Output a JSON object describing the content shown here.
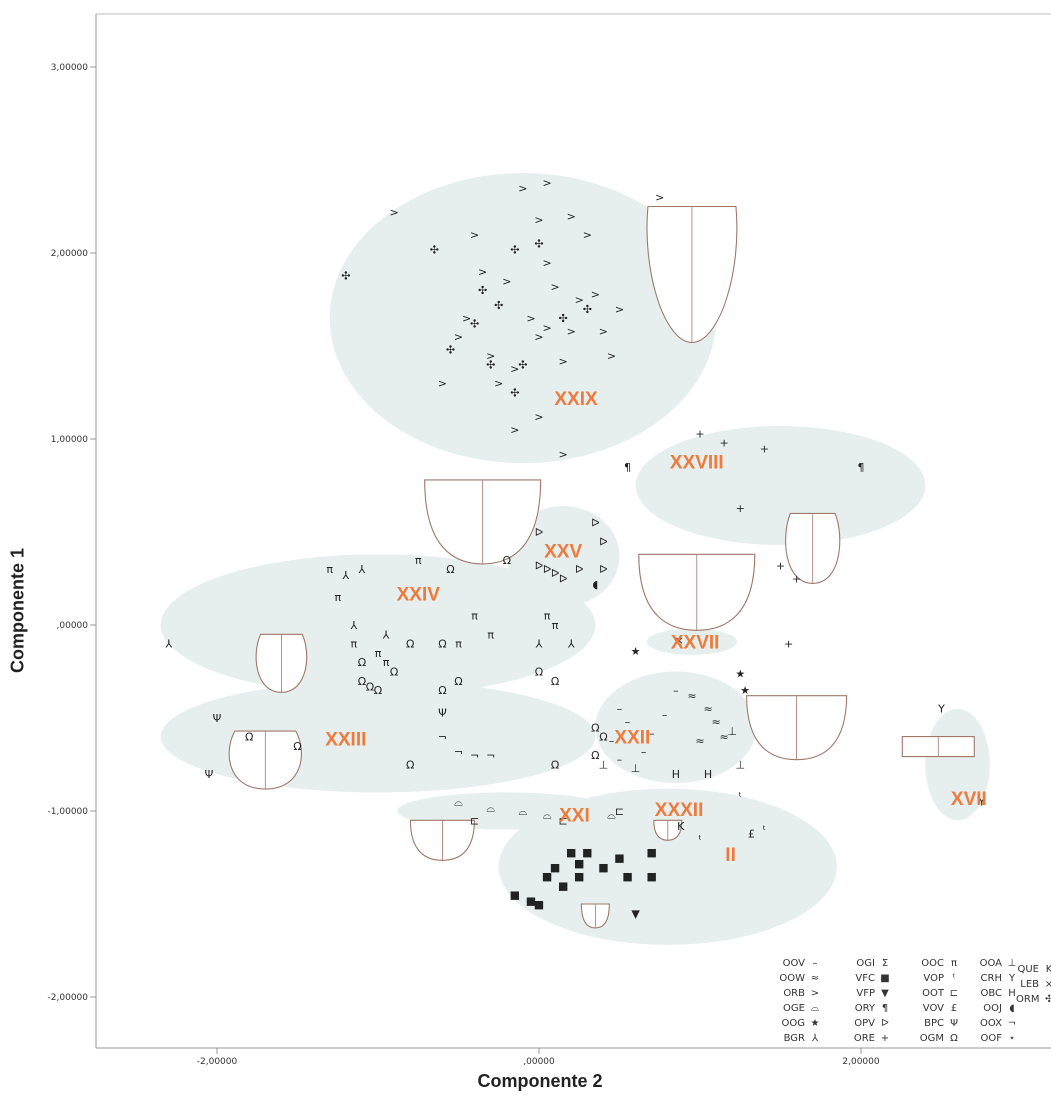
{
  "chart_data": {
    "type": "scatter",
    "xlabel": "Componente 2",
    "ylabel": "Componente 1",
    "xlim": [
      -2.7,
      3.2
    ],
    "ylim": [
      -2.3,
      3.3
    ],
    "x_ticks": [
      {
        "value": -2.0,
        "label": "-2,00000"
      },
      {
        "value": 0.0,
        "label": ",00000"
      },
      {
        "value": 2.0,
        "label": "2,00000"
      }
    ],
    "y_ticks": [
      {
        "value": 3.0,
        "label": "3,00000"
      },
      {
        "value": 2.0,
        "label": "2,00000"
      },
      {
        "value": 1.0,
        "label": "1,00000"
      },
      {
        "value": 0.0,
        "label": ",00000"
      },
      {
        "value": -1.0,
        "label": "-1,00000"
      },
      {
        "value": -2.0,
        "label": "-2,00000"
      }
    ],
    "cluster_color": "#e6efee",
    "label_color": "#ee7a3b",
    "clusters": [
      {
        "label": "XXIX",
        "lx": 0.23,
        "ly": 1.22,
        "cx": -0.1,
        "cy": 1.65,
        "rx": 1.2,
        "ry": 0.78
      },
      {
        "label": "XXVIII",
        "lx": 0.98,
        "ly": 0.88,
        "cx": 1.5,
        "cy": 0.75,
        "rx": 0.9,
        "ry": 0.32
      },
      {
        "label": "XXV",
        "lx": 0.15,
        "ly": 0.4,
        "cx": 0.15,
        "cy": 0.37,
        "rx": 0.35,
        "ry": 0.27
      },
      {
        "label": "XXIV",
        "lx": -0.75,
        "ly": 0.17,
        "cx": -1.0,
        "cy": 0.0,
        "rx": 1.35,
        "ry": 0.38
      },
      {
        "label": "XXVII",
        "lx": 0.97,
        "ly": -0.09,
        "cx": 0.95,
        "cy": -0.09,
        "rx": 0.28,
        "ry": 0.07
      },
      {
        "label": "XXIII",
        "lx": -1.2,
        "ly": -0.61,
        "cx": -1.0,
        "cy": -0.6,
        "rx": 1.35,
        "ry": 0.3
      },
      {
        "label": "XXII",
        "lx": 0.58,
        "ly": -0.6,
        "cx": 0.85,
        "cy": -0.55,
        "rx": 0.5,
        "ry": 0.3
      },
      {
        "label": "XVII",
        "lx": 2.67,
        "ly": -0.93,
        "cx": 2.6,
        "cy": -0.75,
        "rx": 0.2,
        "ry": 0.3
      },
      {
        "label": "XXI",
        "lx": 0.22,
        "ly": -1.02,
        "cx": -0.2,
        "cy": -1.0,
        "rx": 0.68,
        "ry": 0.1
      },
      {
        "label": "XXXII",
        "lx": 0.87,
        "ly": -0.99,
        "cx": 0.9,
        "cy": -0.99,
        "rx": 0.12,
        "ry": 0.06
      },
      {
        "label": "II",
        "lx": 1.19,
        "ly": -1.23,
        "cx": 0.8,
        "cy": -1.3,
        "rx": 1.05,
        "ry": 0.42
      }
    ],
    "series": [
      {
        "code": "OOV",
        "symbol": "–",
        "points": [
          [
            0.5,
            -0.45
          ],
          [
            0.45,
            -0.62
          ],
          [
            0.55,
            -0.52
          ],
          [
            0.7,
            -0.58
          ],
          [
            0.65,
            -0.68
          ],
          [
            0.5,
            -0.72
          ],
          [
            0.85,
            -0.35
          ],
          [
            0.78,
            -0.48
          ]
        ]
      },
      {
        "code": "OOW",
        "symbol": "≈",
        "points": [
          [
            1.05,
            -0.45
          ],
          [
            1.1,
            -0.52
          ],
          [
            1.15,
            -0.6
          ],
          [
            1.0,
            -0.62
          ],
          [
            0.95,
            -0.38
          ]
        ]
      },
      {
        "code": "ORB",
        "symbol": ">",
        "points": [
          [
            -0.9,
            2.22
          ],
          [
            -0.4,
            2.1
          ],
          [
            -0.1,
            2.35
          ],
          [
            0.0,
            2.18
          ],
          [
            0.05,
            2.38
          ],
          [
            0.2,
            2.2
          ],
          [
            0.3,
            2.1
          ],
          [
            -0.35,
            1.9
          ],
          [
            -0.45,
            1.65
          ],
          [
            0.05,
            1.95
          ],
          [
            -0.2,
            1.85
          ],
          [
            0.1,
            1.82
          ],
          [
            0.25,
            1.75
          ],
          [
            0.35,
            1.78
          ],
          [
            0.4,
            1.58
          ],
          [
            0.2,
            1.58
          ],
          [
            -0.5,
            1.55
          ],
          [
            -0.3,
            1.45
          ],
          [
            -0.05,
            1.65
          ],
          [
            0.0,
            1.55
          ],
          [
            0.15,
            1.42
          ],
          [
            -0.15,
            1.38
          ],
          [
            -0.25,
            1.3
          ],
          [
            0.05,
            1.6
          ],
          [
            0.45,
            1.45
          ],
          [
            0.5,
            1.7
          ],
          [
            0.75,
            2.3
          ],
          [
            -0.6,
            1.3
          ],
          [
            -0.15,
            1.05
          ],
          [
            0.0,
            1.12
          ],
          [
            0.15,
            0.92
          ]
        ]
      },
      {
        "code": "OGE",
        "symbol": "⌓",
        "points": [
          [
            -0.5,
            -0.95
          ],
          [
            -0.3,
            -0.98
          ],
          [
            -0.1,
            -1.0
          ],
          [
            0.05,
            -1.02
          ],
          [
            0.45,
            -1.02
          ]
        ]
      },
      {
        "code": "OOG",
        "symbol": "★",
        "points": [
          [
            1.25,
            -0.26
          ],
          [
            1.28,
            -0.35
          ],
          [
            0.6,
            -0.14
          ]
        ]
      },
      {
        "code": "BGR",
        "symbol": "⅄",
        "points": [
          [
            -1.2,
            0.27
          ],
          [
            -1.1,
            0.3
          ],
          [
            -1.15,
            0.0
          ],
          [
            -0.95,
            -0.05
          ],
          [
            0.0,
            -0.1
          ],
          [
            0.2,
            -0.1
          ],
          [
            -2.3,
            -0.1
          ]
        ]
      },
      {
        "code": "OGI",
        "symbol": "Σ",
        "points": []
      },
      {
        "code": "VFC",
        "symbol": "■",
        "points": [
          [
            -0.15,
            -1.45
          ],
          [
            -0.05,
            -1.48
          ],
          [
            0.0,
            -1.5
          ],
          [
            0.05,
            -1.35
          ],
          [
            0.1,
            -1.3
          ],
          [
            0.15,
            -1.4
          ],
          [
            0.25,
            -1.28
          ],
          [
            0.2,
            -1.22
          ],
          [
            0.3,
            -1.22
          ],
          [
            0.4,
            -1.3
          ],
          [
            0.5,
            -1.25
          ],
          [
            0.55,
            -1.35
          ],
          [
            0.7,
            -1.22
          ],
          [
            0.7,
            -1.35
          ],
          [
            0.25,
            -1.35
          ]
        ]
      },
      {
        "code": "VFP",
        "symbol": "▼",
        "points": [
          [
            0.6,
            -1.55
          ]
        ]
      },
      {
        "code": "ORY",
        "symbol": "¶",
        "points": [
          [
            0.55,
            0.85
          ],
          [
            2.0,
            0.85
          ]
        ]
      },
      {
        "code": "OPV",
        "symbol": "ᐅ",
        "points": [
          [
            0.0,
            0.5
          ],
          [
            0.35,
            0.55
          ],
          [
            0.4,
            0.45
          ],
          [
            0.0,
            0.32
          ],
          [
            0.05,
            0.3
          ],
          [
            0.1,
            0.28
          ],
          [
            0.15,
            0.25
          ],
          [
            0.25,
            0.3
          ],
          [
            0.4,
            0.3
          ]
        ]
      },
      {
        "code": "ORE",
        "symbol": "+",
        "points": [
          [
            1.0,
            1.03
          ],
          [
            1.15,
            0.98
          ],
          [
            1.4,
            0.95
          ],
          [
            1.25,
            0.63
          ],
          [
            1.5,
            0.32
          ],
          [
            1.6,
            0.25
          ],
          [
            1.55,
            -0.1
          ]
        ]
      },
      {
        "code": "OOC",
        "symbol": "π",
        "points": [
          [
            -0.75,
            0.35
          ],
          [
            -1.3,
            0.3
          ],
          [
            -1.25,
            0.15
          ],
          [
            -1.15,
            -0.1
          ],
          [
            -1.0,
            -0.15
          ],
          [
            -0.95,
            -0.2
          ],
          [
            -0.5,
            -0.1
          ],
          [
            -0.4,
            0.05
          ],
          [
            -0.3,
            -0.05
          ],
          [
            0.1,
            0.0
          ],
          [
            0.05,
            0.05
          ]
        ]
      },
      {
        "code": "VOP",
        "symbol": "ᵗ",
        "points": [
          [
            1.25,
            -0.92
          ],
          [
            1.4,
            -1.1
          ],
          [
            1.0,
            -1.15
          ]
        ]
      },
      {
        "code": "OOT",
        "symbol": "⊏",
        "points": [
          [
            -0.4,
            -1.05
          ],
          [
            0.15,
            -1.05
          ],
          [
            0.5,
            -1.0
          ]
        ]
      },
      {
        "code": "VOV",
        "symbol": "£",
        "points": [
          [
            1.32,
            -1.12
          ]
        ]
      },
      {
        "code": "BPC",
        "symbol": "Ψ",
        "points": [
          [
            -2.0,
            -0.5
          ],
          [
            -2.05,
            -0.8
          ],
          [
            -0.6,
            -0.47
          ]
        ]
      },
      {
        "code": "OGM",
        "symbol": "Ω",
        "points": [
          [
            -0.55,
            0.3
          ],
          [
            -0.2,
            0.35
          ],
          [
            -1.1,
            -0.2
          ],
          [
            -1.1,
            -0.3
          ],
          [
            -1.05,
            -0.33
          ],
          [
            -1.0,
            -0.35
          ],
          [
            -0.9,
            -0.25
          ],
          [
            -0.8,
            -0.1
          ],
          [
            -0.6,
            -0.1
          ],
          [
            -0.5,
            -0.3
          ],
          [
            -0.6,
            -0.35
          ],
          [
            0.0,
            -0.25
          ],
          [
            0.1,
            -0.3
          ],
          [
            0.35,
            -0.55
          ],
          [
            0.4,
            -0.6
          ],
          [
            0.35,
            -0.7
          ],
          [
            0.1,
            -0.75
          ],
          [
            -0.8,
            -0.75
          ],
          [
            -1.5,
            -0.65
          ],
          [
            -1.8,
            -0.6
          ]
        ]
      },
      {
        "code": "OOA",
        "symbol": "⊥",
        "points": [
          [
            0.6,
            -0.77
          ],
          [
            0.4,
            -0.75
          ],
          [
            1.2,
            -0.57
          ],
          [
            1.25,
            -0.75
          ]
        ]
      },
      {
        "code": "CRH",
        "symbol": "Y",
        "points": [
          [
            2.5,
            -0.45
          ],
          [
            2.75,
            -0.95
          ]
        ]
      },
      {
        "code": "OBC",
        "symbol": "H",
        "points": [
          [
            0.85,
            -0.8
          ],
          [
            1.05,
            -0.8
          ]
        ]
      },
      {
        "code": "OOJ",
        "symbol": "◖",
        "points": [
          [
            0.35,
            0.22
          ]
        ]
      },
      {
        "code": "OOX",
        "symbol": "¬",
        "points": [
          [
            -0.6,
            -0.6
          ],
          [
            -0.5,
            -0.68
          ],
          [
            -0.4,
            -0.7
          ],
          [
            -0.3,
            -0.7
          ]
        ]
      },
      {
        "code": "OOF",
        "symbol": "⋆",
        "points": []
      },
      {
        "code": "QUE",
        "symbol": "K",
        "points": [
          [
            0.88,
            -1.08
          ]
        ]
      },
      {
        "code": "LEB",
        "symbol": "×",
        "points": [
          [
            0.87,
            -0.08
          ]
        ]
      },
      {
        "code": "ORM",
        "symbol": "✣",
        "points": [
          [
            -1.2,
            1.88
          ],
          [
            -0.65,
            2.02
          ],
          [
            -0.15,
            2.02
          ],
          [
            0.0,
            2.05
          ],
          [
            -0.35,
            1.8
          ],
          [
            -0.25,
            1.72
          ],
          [
            0.15,
            1.65
          ],
          [
            0.3,
            1.7
          ],
          [
            -0.4,
            1.62
          ],
          [
            -0.55,
            1.48
          ],
          [
            -0.3,
            1.4
          ],
          [
            -0.1,
            1.4
          ],
          [
            -0.15,
            1.25
          ]
        ]
      }
    ]
  },
  "legend": {
    "columns": [
      [
        {
          "code": "OOV",
          "symbol": "–"
        },
        {
          "code": "OOW",
          "symbol": "≈"
        },
        {
          "code": "ORB",
          "symbol": ">"
        },
        {
          "code": "OGE",
          "symbol": "⌓"
        },
        {
          "code": "OOG",
          "symbol": "★"
        },
        {
          "code": "BGR",
          "symbol": "⅄"
        }
      ],
      [
        {
          "code": "OGI",
          "symbol": "Σ"
        },
        {
          "code": "VFC",
          "symbol": "■"
        },
        {
          "code": "VFP",
          "symbol": "▼"
        },
        {
          "code": "ORY",
          "symbol": "¶"
        },
        {
          "code": "OPV",
          "symbol": "ᐅ"
        },
        {
          "code": "ORE",
          "symbol": "+"
        }
      ],
      [
        {
          "code": "OOC",
          "symbol": "π"
        },
        {
          "code": "VOP",
          "symbol": "ᵗ"
        },
        {
          "code": "OOT",
          "symbol": "⊏"
        },
        {
          "code": "VOV",
          "symbol": "£"
        },
        {
          "code": "BPC",
          "symbol": "Ψ"
        },
        {
          "code": "OGM",
          "symbol": "Ω"
        }
      ],
      [
        {
          "code": "OOA",
          "symbol": "⊥"
        },
        {
          "code": "CRH",
          "symbol": "Y"
        },
        {
          "code": "OBC",
          "symbol": "H"
        },
        {
          "code": "OOJ",
          "symbol": "◖"
        },
        {
          "code": "OOX",
          "symbol": "¬"
        },
        {
          "code": "OOF",
          "symbol": "⋆"
        }
      ],
      [
        {
          "code": "QUE",
          "symbol": "K"
        },
        {
          "code": "LEB",
          "symbol": "×"
        },
        {
          "code": "ORM",
          "symbol": "✣"
        }
      ]
    ]
  }
}
